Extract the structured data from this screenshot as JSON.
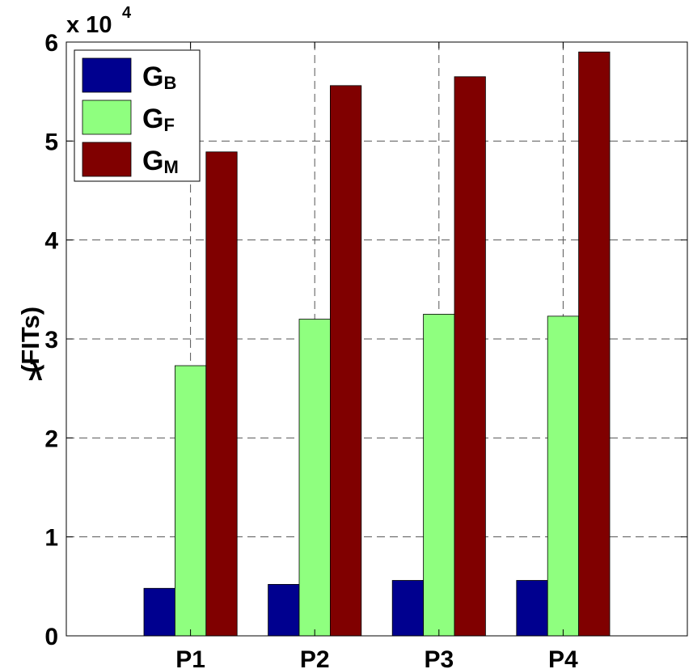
{
  "chart_data": {
    "type": "bar",
    "title": "",
    "xlabel": "",
    "ylabel": "(FITs)",
    "ylabel_symbol": "λ",
    "y_multiplier": {
      "prefix": "x 10",
      "exponent": "4"
    },
    "ylim": [
      0,
      60000
    ],
    "yticks": [
      0,
      10000,
      20000,
      30000,
      40000,
      50000,
      60000
    ],
    "ytick_labels": [
      "0",
      "1",
      "2",
      "3",
      "4",
      "5",
      "6"
    ],
    "xlim": [
      0,
      5
    ],
    "categories": [
      "P1",
      "P2",
      "P3",
      "P4"
    ],
    "grid": true,
    "legend_position": "top-left",
    "series": [
      {
        "name": "G",
        "subscript": "B",
        "color": "#00008f",
        "values": [
          4800,
          5200,
          5600,
          5600
        ]
      },
      {
        "name": "G",
        "subscript": "F",
        "color": "#8fff7f",
        "values": [
          27300,
          32000,
          32500,
          32300
        ]
      },
      {
        "name": "G",
        "subscript": "M",
        "color": "#800000",
        "values": [
          48900,
          55600,
          56500,
          59000
        ]
      }
    ]
  }
}
